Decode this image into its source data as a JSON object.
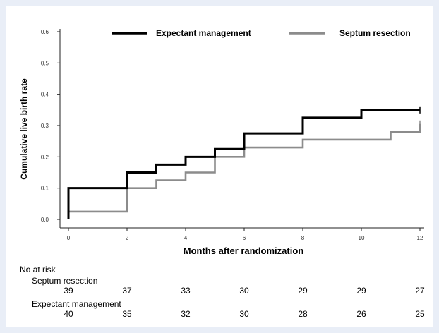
{
  "chart_data": {
    "type": "line",
    "step": true,
    "xlabel": "Months after randomization",
    "ylabel": "Cumulative live birth rate",
    "xlim": [
      0,
      12
    ],
    "ylim": [
      0,
      0.6
    ],
    "xticks": [
      "0",
      "2",
      "4",
      "6",
      "8",
      "10",
      "12"
    ],
    "yticks": [
      "0.0",
      "0.1",
      "0.2",
      "0.3",
      "0.4",
      "0.5",
      "0.6"
    ],
    "grid": false,
    "legend_position": "top",
    "series": [
      {
        "name": "Expectant management",
        "color": "#000000",
        "x": [
          0,
          2,
          3,
          4,
          5,
          6,
          8,
          10,
          12
        ],
        "y": [
          0.1,
          0.15,
          0.175,
          0.2,
          0.225,
          0.275,
          0.325,
          0.35,
          0.35
        ]
      },
      {
        "name": "Septum resection",
        "color": "#8c8c8c",
        "x": [
          0,
          2,
          3,
          4,
          5,
          6,
          8,
          11,
          12
        ],
        "y": [
          0.025,
          0.1,
          0.125,
          0.15,
          0.2,
          0.23,
          0.255,
          0.28,
          0.305
        ]
      }
    ]
  },
  "risk_table": {
    "title": "No at risk",
    "groups": [
      {
        "label": "Septum resection",
        "values": [
          "39",
          "37",
          "33",
          "30",
          "29",
          "29",
          "27"
        ]
      },
      {
        "label": "Expectant management",
        "values": [
          "40",
          "35",
          "32",
          "30",
          "28",
          "26",
          "25"
        ]
      }
    ]
  }
}
